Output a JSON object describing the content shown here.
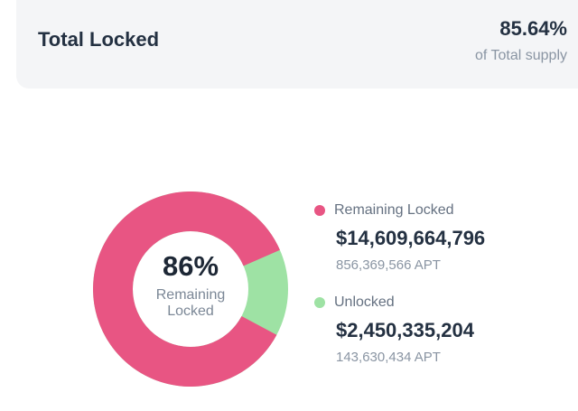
{
  "summary": {
    "title": "Total Locked",
    "percent": "85.64%",
    "subtitle": "of Total supply"
  },
  "donut": {
    "center_percent": "86%",
    "caption_line1": "Remaining",
    "caption_line2": "Locked",
    "locked_fraction": 0.8564,
    "colors": {
      "locked": "#e85583",
      "unlocked": "#9ee2a4"
    }
  },
  "legend": {
    "locked": {
      "label": "Remaining Locked",
      "value": "$14,609,664,796",
      "amount": "856,369,566 APT",
      "color": "#e85583"
    },
    "unlocked": {
      "label": "Unlocked",
      "value": "$2,450,335,204",
      "amount": "143,630,434 APT",
      "color": "#9ee2a4"
    }
  }
}
